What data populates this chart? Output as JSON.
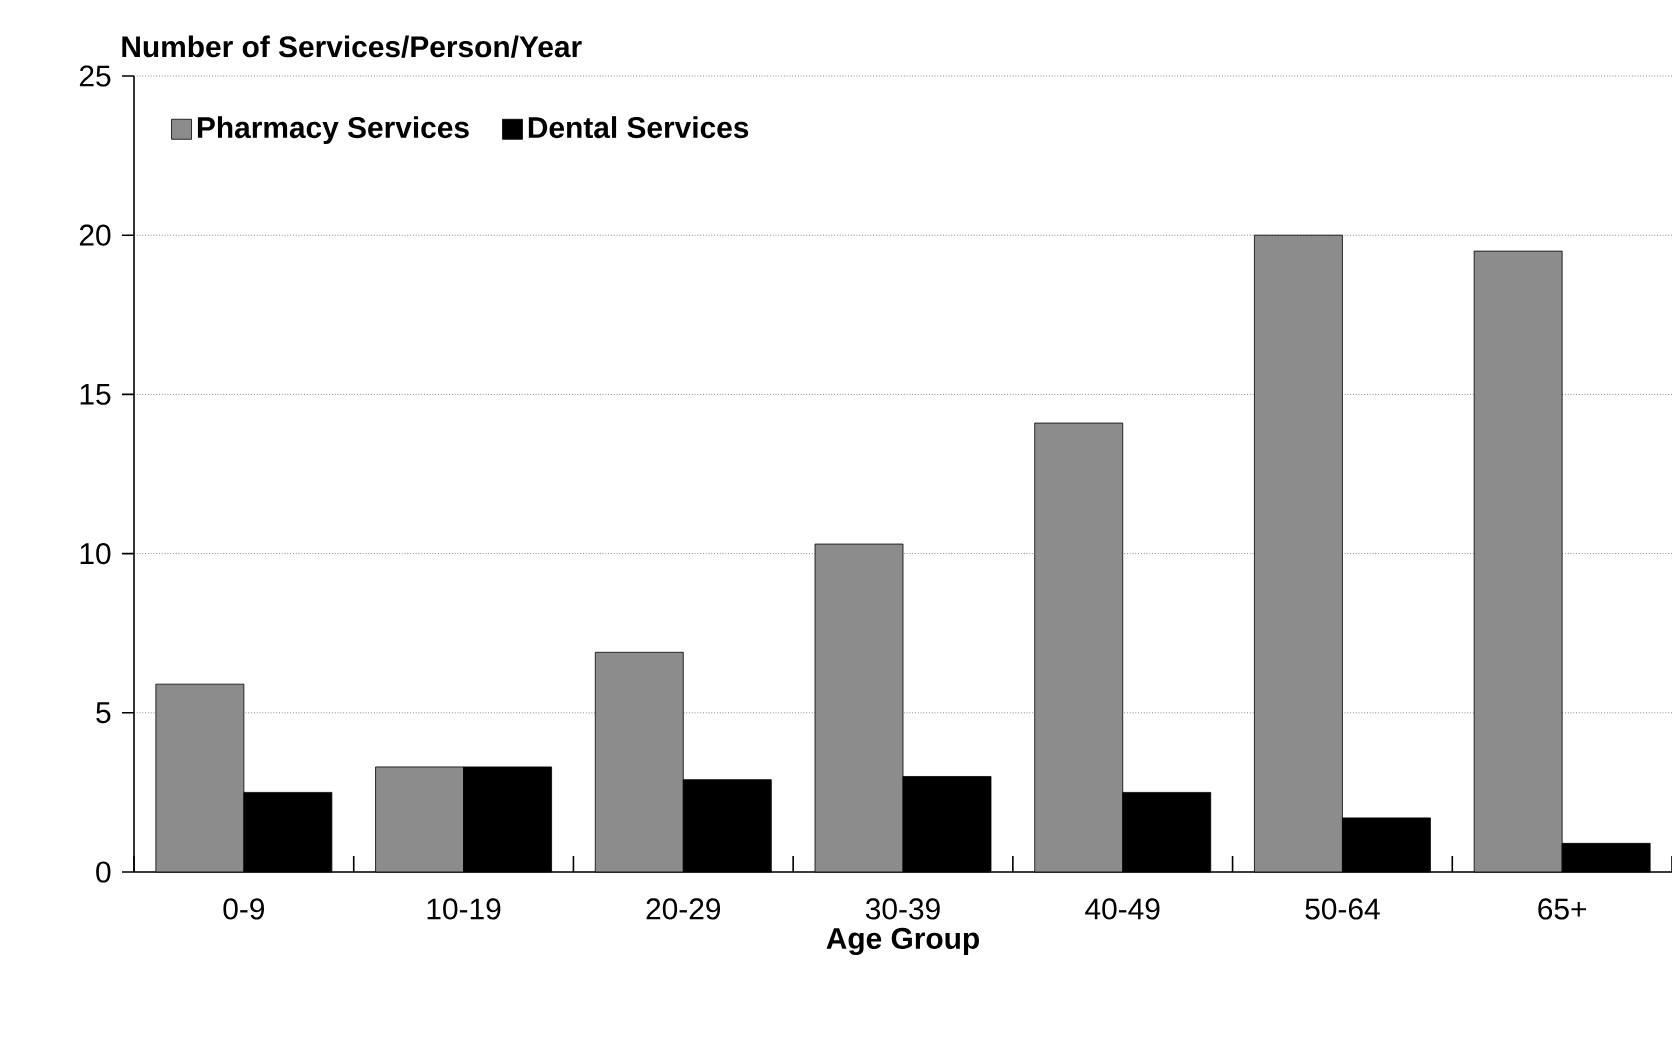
{
  "chart_data": {
    "type": "bar",
    "xlabel": "Age Group",
    "ylabel": "Number of Services/Person/Year",
    "categories": [
      "0-9",
      "10-19",
      "20-29",
      "30-39",
      "40-49",
      "50-64",
      "65+"
    ],
    "series": [
      {
        "name": "Pharmacy Services",
        "color": "#8c8c8c",
        "values": [
          5.9,
          3.3,
          6.9,
          10.3,
          14.1,
          20.0,
          19.5
        ]
      },
      {
        "name": "Dental Services",
        "color": "#000000",
        "values": [
          2.5,
          3.3,
          2.9,
          3.0,
          2.5,
          1.7,
          0.9
        ]
      }
    ],
    "ylim": [
      0,
      25
    ],
    "yticks": [
      0,
      5,
      10,
      15,
      20,
      25
    ],
    "grid": "y",
    "legend": "top left"
  }
}
